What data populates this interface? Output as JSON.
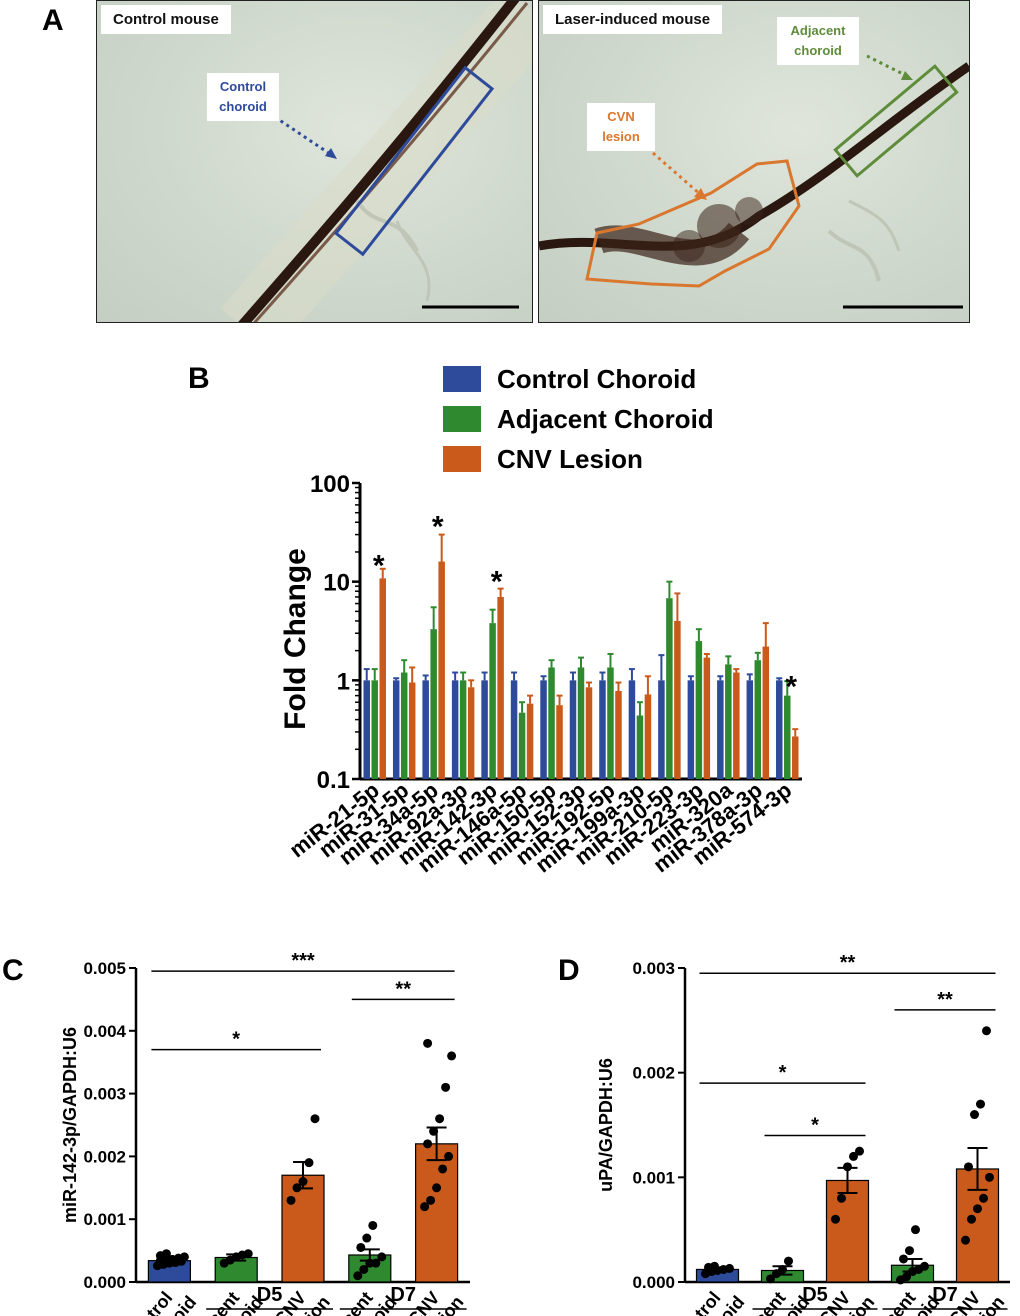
{
  "panels": {
    "a": "A",
    "b": "B",
    "c": "C",
    "d": "D"
  },
  "images": {
    "left_label": "Control mouse",
    "right_label": "Laser-induced mouse",
    "control_choroid": [
      "Control",
      "choroid"
    ],
    "adjacent_choroid": [
      "Adjacent",
      "choroid"
    ],
    "cvn_lesion": [
      "CVN",
      "lesion"
    ]
  },
  "colors": {
    "control": "#2e4a9a",
    "adjacent": "#2f8a2f",
    "cnv": "#c95a1c",
    "adjacent_box": "#5e8c3a",
    "lesion_box": "#d9772e"
  },
  "chart_data": [
    {
      "type": "bar",
      "panel": "B",
      "ylabel": "Fold Change",
      "yscale": "log",
      "ylim": [
        0.1,
        100
      ],
      "yticks": [
        "0.1",
        "1",
        "10",
        "100"
      ],
      "categories": [
        "miR-21-5p",
        "miR-31-5p",
        "miR-34a-5p",
        "miR-92a-3p",
        "miR-142-3p",
        "miR-146a-5p",
        "miR-150-5p",
        "miR-152-3p",
        "miR-192-5p",
        "miR-199a-3p",
        "miR-210-5p",
        "miR-223-3p",
        "miR-320a",
        "miR-378a-3p",
        "miR-574-3p"
      ],
      "series": [
        {
          "name": "Control Choroid",
          "color": "#2e4a9a",
          "values": [
            1.0,
            1.0,
            1.0,
            1.0,
            1.0,
            1.0,
            1.0,
            1.0,
            1.0,
            1.0,
            1.0,
            1.0,
            1.0,
            1.0,
            1.0
          ],
          "errors": [
            1.3,
            1.05,
            1.12,
            1.2,
            1.2,
            1.2,
            1.1,
            1.2,
            1.2,
            1.3,
            1.8,
            1.1,
            1.1,
            1.15,
            1.05
          ]
        },
        {
          "name": "Adjacent Choroid",
          "color": "#2f8a2f",
          "values": [
            1.0,
            1.2,
            3.3,
            1.0,
            3.8,
            0.47,
            1.35,
            1.35,
            1.35,
            0.44,
            6.8,
            2.5,
            1.45,
            1.6,
            0.7
          ],
          "errors": [
            1.3,
            1.6,
            5.5,
            1.2,
            5.2,
            0.6,
            1.6,
            1.7,
            1.85,
            0.6,
            10.0,
            3.3,
            1.75,
            1.9,
            0.98
          ]
        },
        {
          "name": "CNV Lesion",
          "color": "#c95a1c",
          "values": [
            10.8,
            0.95,
            16.0,
            0.85,
            7.0,
            0.58,
            0.56,
            0.85,
            0.78,
            0.72,
            4.0,
            1.7,
            1.2,
            2.2,
            0.27
          ],
          "errors": [
            13.5,
            1.35,
            30.0,
            1.0,
            8.5,
            0.7,
            0.7,
            0.95,
            0.95,
            1.1,
            7.6,
            1.85,
            1.3,
            3.8,
            0.32
          ]
        }
      ],
      "annotations": [
        {
          "text": "*",
          "category": "miR-21-5p",
          "value": 16
        },
        {
          "text": "*",
          "category": "miR-34a-5p",
          "value": 40
        },
        {
          "text": "*",
          "category": "miR-142-3p",
          "value": 11
        },
        {
          "text": "*",
          "category": "miR-574-3p",
          "value": 0.95
        }
      ],
      "legend": "top"
    },
    {
      "type": "bar",
      "panel": "C",
      "ylabel": "miR-142-3p/GAPDH:U6",
      "ylim": [
        0,
        0.005
      ],
      "yticks": [
        "0.000",
        "0.001",
        "0.002",
        "0.003",
        "0.004",
        "0.005"
      ],
      "categories": [
        [
          "Control",
          "Choroid"
        ],
        [
          "Adjacent",
          "Choroid"
        ],
        [
          "CNV",
          "Lesion"
        ],
        [
          "Adjacent",
          "Choroid"
        ],
        [
          "CNV",
          "Lesion"
        ]
      ],
      "values": [
        0.00034,
        0.00039,
        0.0017,
        0.00043,
        0.0022
      ],
      "errors": [
        4e-05,
        5e-05,
        0.00021,
        9e-05,
        0.00026
      ],
      "points": [
        [
          0.00026,
          0.00028,
          0.0003,
          0.00031,
          0.00033,
          0.00034,
          0.00035,
          0.00036,
          0.00038,
          0.0004,
          0.00042,
          0.00045
        ],
        [
          0.0003,
          0.00035,
          0.0004,
          0.00043,
          0.00045
        ],
        [
          0.0013,
          0.0015,
          0.0016,
          0.0019,
          0.0026
        ],
        [
          0.0001,
          0.0002,
          0.0003,
          0.0003,
          0.0004,
          0.00055,
          0.0007,
          0.0009
        ],
        [
          0.0012,
          0.0013,
          0.0015,
          0.0018,
          0.002,
          0.0022,
          0.0024,
          0.0026,
          0.0031,
          0.0036,
          0.0038
        ]
      ],
      "groups": [
        {
          "label": "D5",
          "from": 1,
          "to": 2
        },
        {
          "label": "D7",
          "from": 3,
          "to": 4
        }
      ],
      "significance": [
        {
          "text": "***",
          "from": 0,
          "to": 4,
          "value": 0.00495
        },
        {
          "text": "**",
          "from": 3,
          "to": 4,
          "value": 0.0045
        },
        {
          "text": "*",
          "from": 0,
          "to": 2,
          "value": 0.0037
        }
      ]
    },
    {
      "type": "bar",
      "panel": "D",
      "ylabel": "uPA/GAPDH:U6",
      "ylim": [
        0,
        0.003
      ],
      "yticks": [
        "0.000",
        "0.001",
        "0.002",
        "0.003"
      ],
      "categories": [
        [
          "Control",
          "Choroid"
        ],
        [
          "Adjacent",
          "Choroid"
        ],
        [
          "CNV",
          "Lesion"
        ],
        [
          "Adjacent",
          "Choroid"
        ],
        [
          "CNV",
          "Lesion"
        ]
      ],
      "values": [
        0.00012,
        0.00011,
        0.00097,
        0.00016,
        0.00108
      ],
      "errors": [
        2e-05,
        4e-05,
        0.00012,
        6e-05,
        0.0002
      ],
      "points": [
        [
          8e-05,
          0.0001,
          0.00011,
          0.00012,
          0.00013,
          0.00014,
          0.00015
        ],
        [
          3e-05,
          8e-05,
          0.00012,
          0.0002
        ],
        [
          0.0006,
          0.0008,
          0.0011,
          0.0012,
          0.00125
        ],
        [
          2e-05,
          5e-05,
          0.0001,
          0.00012,
          0.00015,
          0.00022,
          0.0003,
          0.0005
        ],
        [
          0.0004,
          0.0006,
          0.0007,
          0.0008,
          0.001,
          0.0011,
          0.0016,
          0.0017,
          0.0024
        ]
      ],
      "groups": [
        {
          "label": "D5",
          "from": 1,
          "to": 2
        },
        {
          "label": "D7",
          "from": 3,
          "to": 4
        }
      ],
      "significance": [
        {
          "text": "**",
          "from": 0,
          "to": 4,
          "value": 0.00295
        },
        {
          "text": "**",
          "from": 3,
          "to": 4,
          "value": 0.0026
        },
        {
          "text": "*",
          "from": 0,
          "to": 2,
          "value": 0.0019
        },
        {
          "text": "*",
          "from": 1,
          "to": 2,
          "value": 0.0014
        }
      ]
    }
  ]
}
